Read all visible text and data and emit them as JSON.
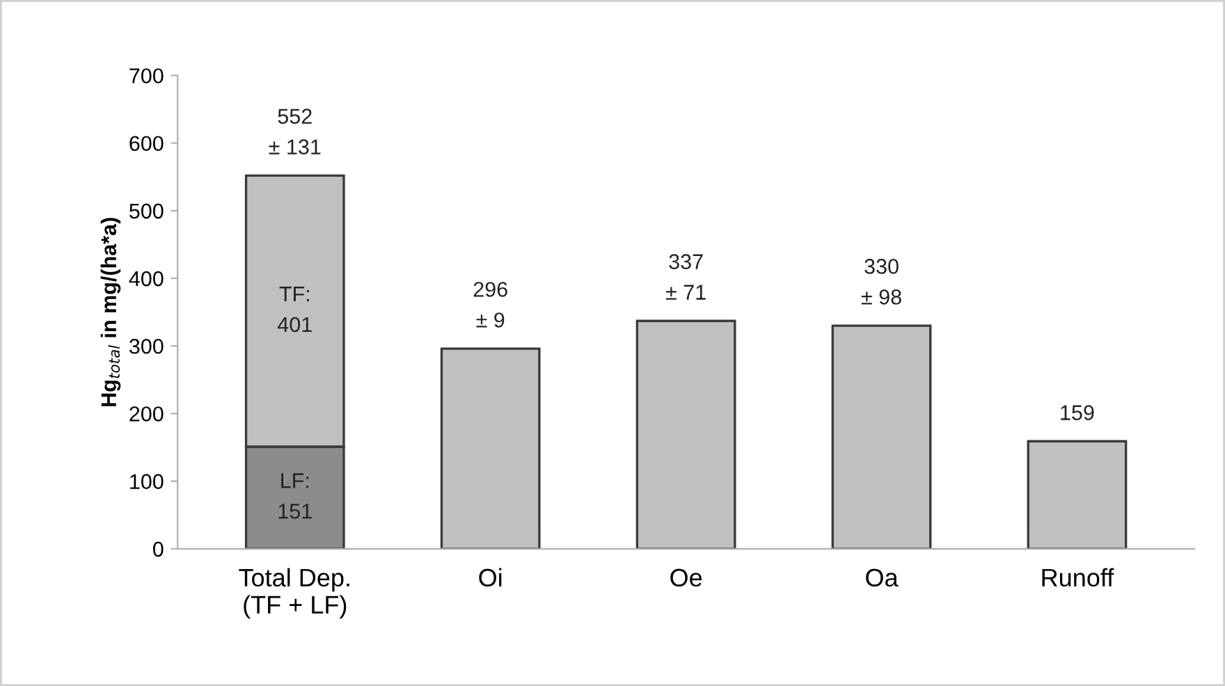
{
  "chart_data": {
    "type": "bar",
    "stacked": true,
    "ylabel": "Hg$_{total}$ in mg/(ha*a)",
    "categories": [
      "Total Dep.\n(TF + LF)",
      "Oi",
      "Oe",
      "Oa",
      "Runoff"
    ],
    "series": [
      {
        "color": "#8c8c8c",
        "values": [
          151,
          null,
          null,
          null,
          null
        ],
        "value_labels": [
          "LF:\n151",
          null,
          null,
          null,
          null
        ]
      },
      {
        "color": "#c0c0c0",
        "values": [
          401,
          296,
          337,
          330,
          159
        ],
        "value_labels": [
          "TF:\n401",
          null,
          null,
          null,
          null
        ]
      }
    ],
    "totals": [
      "552\n± 131",
      "296\n± 9",
      "337\n± 71",
      "330\n± 98",
      "159"
    ],
    "ylim": [
      0,
      700
    ],
    "yticks": [
      0,
      100,
      200,
      300,
      400,
      500,
      600,
      700
    ],
    "grid": false,
    "legend": false
  }
}
